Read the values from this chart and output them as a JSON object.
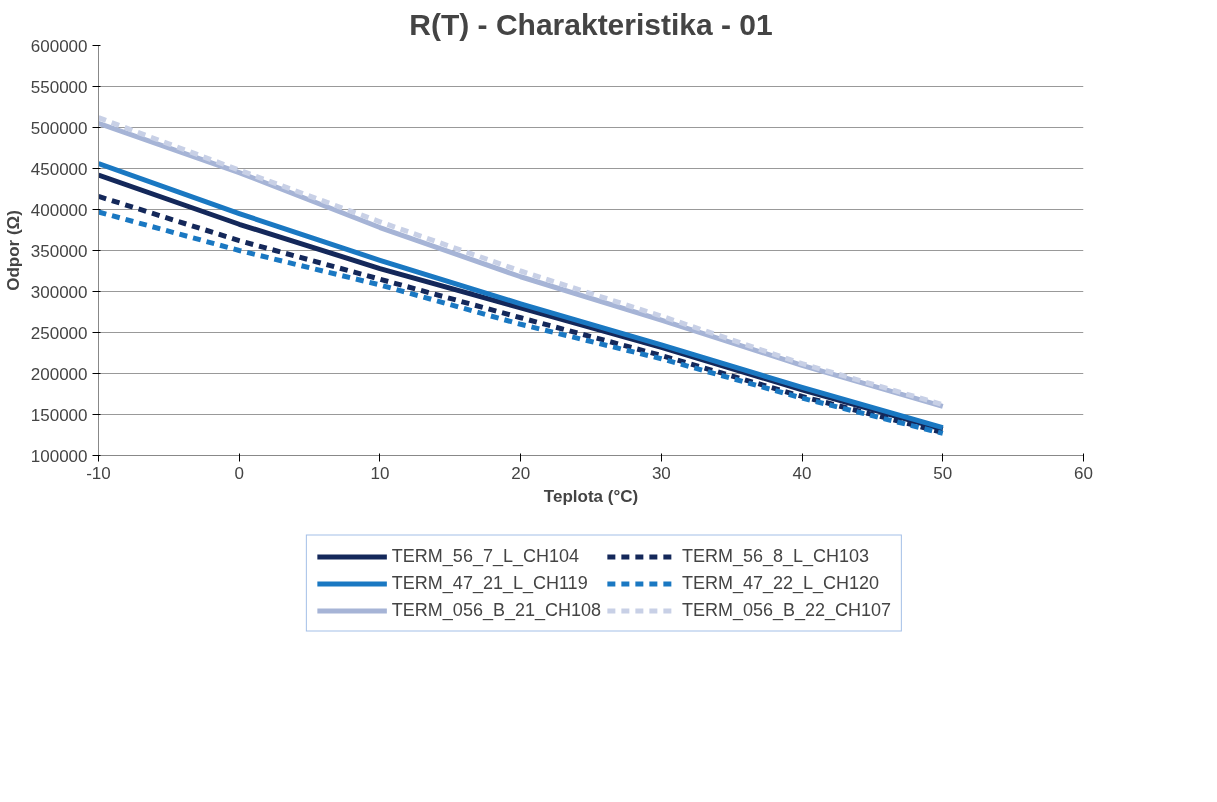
{
  "chart_data": {
    "type": "line",
    "title": "R(T) - Charakteristika - 01",
    "xlabel": "Teplota (°C)",
    "ylabel": "Odpor (Ω)",
    "x": [
      -10,
      0,
      10,
      20,
      30,
      40,
      50
    ],
    "series": [
      {
        "name": "TERM_56_7_L_CH104",
        "color": "#14285a",
        "line_style": "solid",
        "values": [
          442000,
          382000,
          328000,
          280000,
          232000,
          180000,
          132000
        ]
      },
      {
        "name": "TERM_56_8_L_CH103",
        "color": "#14285a",
        "line_style": "dashed",
        "values": [
          416000,
          362000,
          315000,
          268000,
          222000,
          172000,
          128000
        ]
      },
      {
        "name": "TERM_47_21_L_CH119",
        "color": "#1a78c2",
        "line_style": "solid",
        "values": [
          456000,
          395000,
          338000,
          285000,
          235000,
          183000,
          134000
        ]
      },
      {
        "name": "TERM_47_22_L_CH120",
        "color": "#1a78c2",
        "line_style": "dashed",
        "values": [
          397000,
          350000,
          308000,
          260000,
          218000,
          170000,
          127000
        ]
      },
      {
        "name": "TERM_056_B_21_CH108",
        "color": "#a6b4d6",
        "line_style": "solid",
        "values": [
          505000,
          445000,
          378000,
          318000,
          265000,
          210000,
          160000
        ]
      },
      {
        "name": "TERM_056_B_22_CH107",
        "color": "#c8d0e6",
        "line_style": "dashed",
        "values": [
          512000,
          448000,
          385000,
          325000,
          270000,
          212000,
          162000
        ]
      }
    ],
    "xlim": [
      -10,
      60
    ],
    "xticks": [
      -10,
      0,
      10,
      20,
      30,
      40,
      50,
      60
    ],
    "ylim": [
      100000,
      600000
    ],
    "yticks": [
      100000,
      150000,
      200000,
      250000,
      300000,
      350000,
      400000,
      450000,
      500000,
      550000,
      600000
    ],
    "grid": "y",
    "legend": "bottom",
    "marker": "none"
  }
}
